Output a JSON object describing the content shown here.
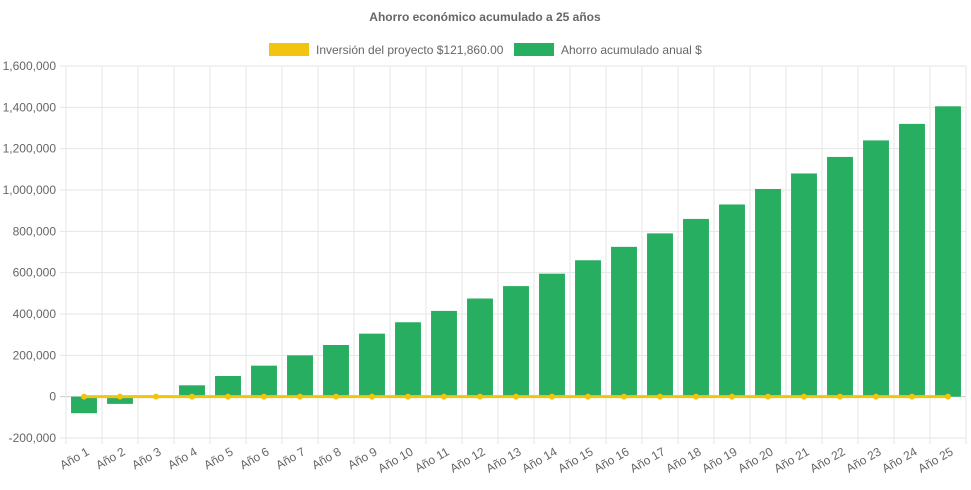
{
  "chart_data": {
    "type": "bar",
    "title": "Ahorro económico acumulado a 25 años",
    "xlabel": "",
    "ylabel": "",
    "categories": [
      "Año 1",
      "Año 2",
      "Año 3",
      "Año 4",
      "Año 5",
      "Año 6",
      "Año 7",
      "Año 8",
      "Año 9",
      "Año 10",
      "Año 11",
      "Año 12",
      "Año 13",
      "Año 14",
      "Año 15",
      "Año 16",
      "Año 17",
      "Año 18",
      "Año 19",
      "Año 20",
      "Año 21",
      "Año 22",
      "Año 23",
      "Año 24",
      "Año 25"
    ],
    "ylim": [
      -200000,
      1600000
    ],
    "yticks": [
      -200000,
      0,
      200000,
      400000,
      600000,
      800000,
      1000000,
      1200000,
      1400000,
      1600000
    ],
    "ytick_labels": [
      "-200,000",
      "0",
      "200,000",
      "400,000",
      "600,000",
      "800,000",
      "1,000,000",
      "1,200,000",
      "1,400,000",
      "1,600,000"
    ],
    "grid": true,
    "legend_position": "top-center",
    "series": [
      {
        "name": "Inversión del proyecto $121,860.00",
        "kind": "line",
        "color": "#f1c40f",
        "values": [
          0,
          0,
          0,
          0,
          0,
          0,
          0,
          0,
          0,
          0,
          0,
          0,
          0,
          0,
          0,
          0,
          0,
          0,
          0,
          0,
          0,
          0,
          0,
          0,
          0
        ]
      },
      {
        "name": "Ahorro acumulado anual $",
        "kind": "bar",
        "color": "#27ae60",
        "values": [
          -80000,
          -35000,
          0,
          55000,
          100000,
          150000,
          200000,
          250000,
          305000,
          360000,
          415000,
          475000,
          535000,
          595000,
          660000,
          725000,
          790000,
          860000,
          930000,
          1005000,
          1080000,
          1160000,
          1240000,
          1320000,
          1405000
        ]
      }
    ]
  }
}
